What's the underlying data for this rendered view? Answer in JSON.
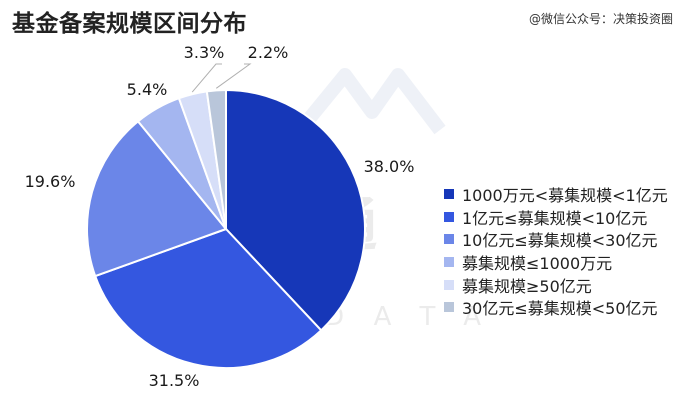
{
  "header": {
    "title": "基金备案规模区间分布",
    "source": "@微信公众号：决策投资圈"
  },
  "chart_data": {
    "type": "pie",
    "title": "基金备案规模区间分布",
    "start_angle_deg": 0,
    "direction": "clockwise",
    "slices": [
      {
        "label": "1000万元<募集规模<1亿元",
        "value": 38.0,
        "value_label": "38.0%",
        "color": "#1637b8"
      },
      {
        "label": "1亿元≤募集规模<10亿元",
        "value": 31.5,
        "value_label": "31.5%",
        "color": "#3457e0"
      },
      {
        "label": "10亿元≤募集规模<30亿元",
        "value": 19.6,
        "value_label": "19.6%",
        "color": "#6b86e8"
      },
      {
        "label": "募集规模≤1000万元",
        "value": 5.4,
        "value_label": "5.4%",
        "color": "#a4b6f0"
      },
      {
        "label": "募集规模≥50亿元",
        "value": 3.3,
        "value_label": "3.3%",
        "color": "#d6def8"
      },
      {
        "label": "30亿元≤募集规模<50亿元",
        "value": 2.2,
        "value_label": "2.2%",
        "color": "#b9c6da"
      }
    ],
    "legend_position": "right",
    "watermark": "私募通 PEDATA"
  }
}
